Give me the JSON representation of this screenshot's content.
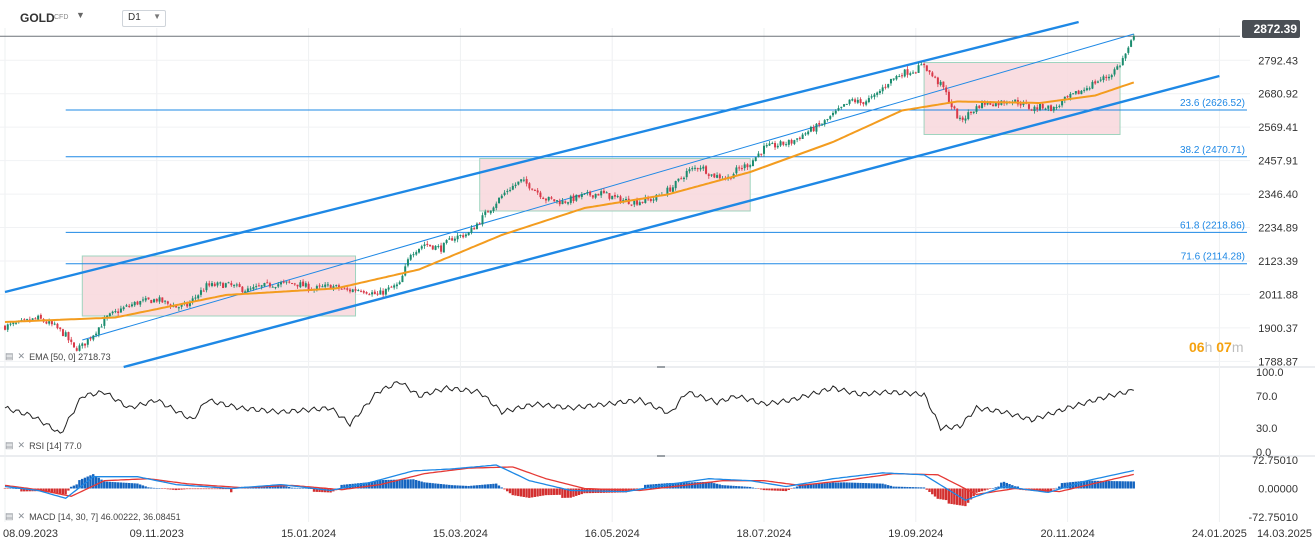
{
  "toolbar": {
    "symbol": "GOLD",
    "symbol_type": "CFD",
    "timeframe": "D1",
    "symbol_dropdown_icon": "caret-down-icon",
    "timeframe_dropdown_icon": "caret-down-icon"
  },
  "last_price": "2872.39",
  "countdown": {
    "hours": "06",
    "h_unit": "h",
    "minutes": "07",
    "m_unit": "m"
  },
  "indicators": {
    "ema": "EMA [50, 0] 2718.73",
    "rsi": "RSI [14] 77.0",
    "macd": "MACD [14, 30, 7] 46.00222, 36.08451"
  },
  "colors": {
    "bull": "#1a8c6e",
    "bear": "#d93a49",
    "ema": "#f39c1f",
    "channel": "#1e88e5",
    "fib": "#1e88e5",
    "zone_fill": "#f8d7dc",
    "zone_border": "#9fd4bf",
    "rsi_line": "#222222",
    "macd_line": "#1e88e5",
    "signal_line": "#e53935",
    "hist_pos": "#1565c0",
    "hist_neg": "#d32f2f"
  },
  "chart_data": {
    "type": "candlestick",
    "instrument": "GOLD CFD",
    "timeframe": "D1",
    "x_tick_labels": [
      "08.09.2023",
      "09.11.2023",
      "15.01.2024",
      "15.03.2024",
      "16.05.2024",
      "18.07.2024",
      "19.09.2024",
      "20.11.2024",
      "24.01.2025",
      "14.03.2025"
    ],
    "price_axis": {
      "ticks": [
        "2792.43",
        "2680.92",
        "2569.41",
        "2457.91",
        "2346.40",
        "2234.89",
        "2123.39",
        "2011.88",
        "1900.37",
        "1788.87"
      ],
      "ylim": [
        1770,
        2900
      ],
      "last_price": 2872.39
    },
    "close_path": [
      [
        0,
        1905
      ],
      [
        5,
        1915
      ],
      [
        12,
        1932
      ],
      [
        18,
        1905
      ],
      [
        22,
        1875
      ],
      [
        25,
        1830
      ],
      [
        28,
        1840
      ],
      [
        32,
        1880
      ],
      [
        37,
        1935
      ],
      [
        42,
        1962
      ],
      [
        48,
        1985
      ],
      [
        55,
        1995
      ],
      [
        62,
        1970
      ],
      [
        66,
        1975
      ],
      [
        73,
        2040
      ],
      [
        80,
        2045
      ],
      [
        88,
        2025
      ],
      [
        96,
        2045
      ],
      [
        105,
        2050
      ],
      [
        112,
        2030
      ],
      [
        118,
        2040
      ],
      [
        124,
        2025
      ],
      [
        129,
        2030
      ],
      [
        135,
        2010
      ],
      [
        138,
        2025
      ],
      [
        143,
        2045
      ],
      [
        147,
        2150
      ],
      [
        152,
        2180
      ],
      [
        158,
        2165
      ],
      [
        162,
        2200
      ],
      [
        168,
        2215
      ],
      [
        175,
        2290
      ],
      [
        182,
        2360
      ],
      [
        187,
        2390
      ],
      [
        191,
        2370
      ],
      [
        196,
        2330
      ],
      [
        202,
        2320
      ],
      [
        209,
        2340
      ],
      [
        216,
        2350
      ],
      [
        222,
        2330
      ],
      [
        228,
        2320
      ],
      [
        235,
        2330
      ],
      [
        242,
        2370
      ],
      [
        247,
        2420
      ],
      [
        252,
        2440
      ],
      [
        256,
        2410
      ],
      [
        262,
        2400
      ],
      [
        265,
        2425
      ],
      [
        270,
        2450
      ],
      [
        275,
        2500
      ],
      [
        280,
        2510
      ],
      [
        285,
        2520
      ],
      [
        290,
        2550
      ],
      [
        296,
        2580
      ],
      [
        300,
        2610
      ],
      [
        307,
        2660
      ],
      [
        310,
        2650
      ],
      [
        315,
        2670
      ],
      [
        320,
        2720
      ],
      [
        325,
        2750
      ],
      [
        330,
        2760
      ],
      [
        333,
        2780
      ],
      [
        335,
        2750
      ],
      [
        340,
        2700
      ],
      [
        343,
        2640
      ],
      [
        346,
        2590
      ],
      [
        350,
        2620
      ],
      [
        354,
        2650
      ],
      [
        360,
        2650
      ],
      [
        364,
        2660
      ],
      [
        368,
        2650
      ],
      [
        372,
        2630
      ],
      [
        376,
        2640
      ],
      [
        380,
        2630
      ],
      [
        384,
        2660
      ],
      [
        390,
        2690
      ],
      [
        395,
        2720
      ],
      [
        400,
        2740
      ],
      [
        404,
        2780
      ],
      [
        407,
        2830
      ],
      [
        409,
        2872.39
      ]
    ],
    "ema_50_path": [
      [
        0,
        1920
      ],
      [
        40,
        1935
      ],
      [
        80,
        2010
      ],
      [
        120,
        2032
      ],
      [
        150,
        2095
      ],
      [
        180,
        2210
      ],
      [
        210,
        2300
      ],
      [
        240,
        2345
      ],
      [
        270,
        2420
      ],
      [
        300,
        2520
      ],
      [
        325,
        2625
      ],
      [
        345,
        2655
      ],
      [
        375,
        2650
      ],
      [
        395,
        2675
      ],
      [
        409,
        2718.73
      ]
    ],
    "ema_50_last": 2718.73,
    "fibonacci_levels": [
      {
        "ratio": "23.6",
        "price": 2626.52,
        "label": "23.6 (2626.52)"
      },
      {
        "ratio": "38.2",
        "price": 2470.71,
        "label": "38.2 (2470.71)"
      },
      {
        "ratio": "61.8",
        "price": 2218.86,
        "label": "61.8 (2218.86)"
      },
      {
        "ratio": "71.6",
        "price": 2114.28,
        "label": "71.6 (2114.28)"
      }
    ],
    "channel": {
      "upper_line": [
        [
          0,
          2020
        ],
        [
          389,
          2920
        ]
      ],
      "middle_line": [
        [
          28,
          1860
        ],
        [
          409,
          2880
        ]
      ],
      "lower_line": [
        [
          43,
          1770
        ],
        [
          440,
          2740
        ]
      ]
    },
    "consolidation_zones": [
      {
        "start": 28,
        "end": 127,
        "top": 2140,
        "bottom": 1940
      },
      {
        "start": 172,
        "end": 270,
        "top": 2465,
        "bottom": 2290
      },
      {
        "start": 333,
        "end": 404,
        "top": 2785,
        "bottom": 2545
      }
    ],
    "rsi": {
      "period": 14,
      "last": 77.0,
      "ylim": [
        0,
        100
      ],
      "ticks": [
        "100.0",
        "70.0",
        "30.0",
        "0.0"
      ],
      "path": [
        [
          0,
          55
        ],
        [
          10,
          45
        ],
        [
          18,
          28
        ],
        [
          20,
          22
        ],
        [
          28,
          70
        ],
        [
          36,
          75
        ],
        [
          45,
          55
        ],
        [
          55,
          65
        ],
        [
          68,
          40
        ],
        [
          73,
          65
        ],
        [
          85,
          55
        ],
        [
          100,
          50
        ],
        [
          118,
          55
        ],
        [
          125,
          35
        ],
        [
          135,
          75
        ],
        [
          143,
          88
        ],
        [
          150,
          70
        ],
        [
          160,
          80
        ],
        [
          172,
          75
        ],
        [
          180,
          50
        ],
        [
          192,
          60
        ],
        [
          205,
          55
        ],
        [
          218,
          60
        ],
        [
          230,
          65
        ],
        [
          241,
          48
        ],
        [
          247,
          75
        ],
        [
          258,
          62
        ],
        [
          265,
          70
        ],
        [
          275,
          60
        ],
        [
          285,
          65
        ],
        [
          300,
          80
        ],
        [
          310,
          72
        ],
        [
          320,
          75
        ],
        [
          333,
          72
        ],
        [
          339,
          30
        ],
        [
          346,
          32
        ],
        [
          352,
          55
        ],
        [
          362,
          50
        ],
        [
          372,
          40
        ],
        [
          385,
          55
        ],
        [
          400,
          70
        ],
        [
          409,
          77
        ]
      ]
    },
    "macd": {
      "params": [
        14,
        30,
        7
      ],
      "macd_last": 46.00222,
      "signal_last": 36.08451,
      "ylim": [
        -72.7501,
        72.7501
      ],
      "ticks": [
        "72.75010",
        "0.00000",
        "-72.75010"
      ],
      "macd_path": [
        [
          0,
          5
        ],
        [
          12,
          -5
        ],
        [
          22,
          -25
        ],
        [
          32,
          30
        ],
        [
          48,
          30
        ],
        [
          62,
          10
        ],
        [
          82,
          0
        ],
        [
          100,
          10
        ],
        [
          118,
          -5
        ],
        [
          132,
          15
        ],
        [
          148,
          45
        ],
        [
          162,
          50
        ],
        [
          178,
          60
        ],
        [
          190,
          20
        ],
        [
          205,
          -5
        ],
        [
          225,
          -8
        ],
        [
          240,
          10
        ],
        [
          255,
          25
        ],
        [
          270,
          20
        ],
        [
          283,
          5
        ],
        [
          300,
          25
        ],
        [
          318,
          40
        ],
        [
          333,
          35
        ],
        [
          348,
          -30
        ],
        [
          362,
          5
        ],
        [
          378,
          -10
        ],
        [
          392,
          20
        ],
        [
          409,
          46
        ]
      ],
      "signal_path": [
        [
          0,
          8
        ],
        [
          12,
          -3
        ],
        [
          24,
          -20
        ],
        [
          36,
          20
        ],
        [
          52,
          25
        ],
        [
          66,
          12
        ],
        [
          86,
          2
        ],
        [
          104,
          8
        ],
        [
          122,
          -3
        ],
        [
          136,
          10
        ],
        [
          152,
          38
        ],
        [
          168,
          52
        ],
        [
          184,
          55
        ],
        [
          196,
          25
        ],
        [
          210,
          0
        ],
        [
          230,
          -5
        ],
        [
          246,
          8
        ],
        [
          260,
          20
        ],
        [
          275,
          20
        ],
        [
          288,
          8
        ],
        [
          304,
          20
        ],
        [
          322,
          38
        ],
        [
          338,
          35
        ],
        [
          352,
          -15
        ],
        [
          366,
          0
        ],
        [
          382,
          -8
        ],
        [
          396,
          15
        ],
        [
          409,
          36
        ]
      ]
    }
  }
}
